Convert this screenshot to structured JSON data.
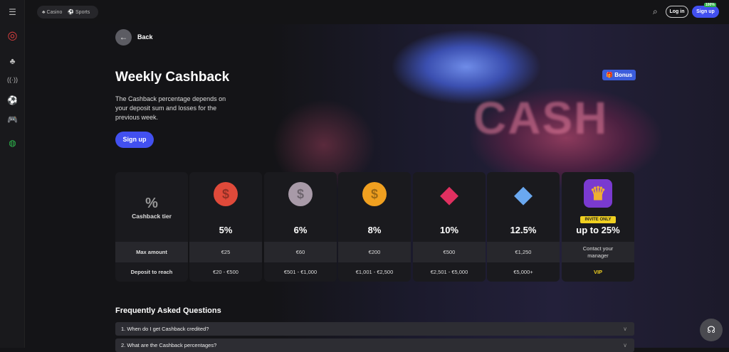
{
  "topbar": {
    "casino": "Casino",
    "sports": "Sports",
    "login": "Log in",
    "signup": "Sign up",
    "signup_badge": "100%"
  },
  "back": "Back",
  "title": "Weekly Cashback",
  "description": "The Cashback percentage depends on your deposit sum and losses for the previous week.",
  "signup": "Sign up",
  "bonus": "Bonus",
  "hero_text": "CASH",
  "table": {
    "header_symbol": "%",
    "header_label": "Cashback tier",
    "row1_label": "Max amount",
    "row2_label": "Deposit to reach",
    "tiers": [
      {
        "percent": "5%",
        "max": "€25",
        "deposit": "€20 - €500",
        "icon": "red-coin",
        "color": "#e04a3a"
      },
      {
        "percent": "6%",
        "max": "€60",
        "deposit": "€501 - €1,000",
        "icon": "silver-coin",
        "color": "#a89aa8"
      },
      {
        "percent": "8%",
        "max": "€200",
        "deposit": "€1,001 - €2,500",
        "icon": "gold-coin",
        "color": "#f0a020"
      },
      {
        "percent": "10%",
        "max": "€500",
        "deposit": "€2,501 - €5,000",
        "icon": "ruby-gem",
        "color": "#e03060"
      },
      {
        "percent": "12.5%",
        "max": "€1,250",
        "deposit": "€5,000+",
        "icon": "diamond",
        "color": "#6aa8f0"
      },
      {
        "percent": "up to 25%",
        "max": "Contact your manager",
        "deposit": "VIP",
        "icon": "crown",
        "color": "#7a3ad0",
        "badge": "INVITE ONLY"
      }
    ]
  },
  "faq": {
    "title": "Frequently Asked Questions",
    "items": [
      "1.  When do I get Cashback credited?",
      "2.  What are the Cashback percentages?"
    ]
  }
}
